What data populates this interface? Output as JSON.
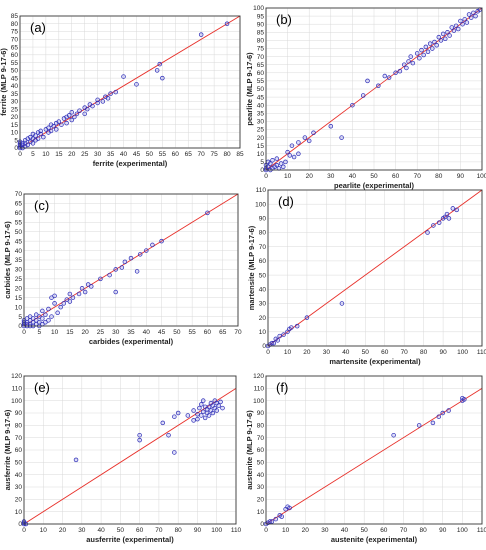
{
  "chart_data": [
    {
      "type": "scatter",
      "panel_label": "(a)",
      "xlabel": "ferrite (experimental)",
      "ylabel": "ferrite (MLP 9-17-6)",
      "xlim": [
        0,
        85
      ],
      "ylim": [
        0,
        85
      ],
      "xticks": [
        0,
        5,
        10,
        15,
        20,
        25,
        30,
        35,
        40,
        45,
        50,
        55,
        60,
        65,
        70,
        75,
        80,
        85
      ],
      "yticks": [
        0,
        5,
        10,
        15,
        20,
        25,
        30,
        35,
        40,
        45,
        50,
        55,
        60,
        65,
        70,
        75,
        80,
        85
      ],
      "diagonal": true,
      "grid": true,
      "points": [
        [
          0,
          0
        ],
        [
          0,
          1
        ],
        [
          0,
          2
        ],
        [
          0,
          3
        ],
        [
          0,
          4
        ],
        [
          1,
          0
        ],
        [
          1,
          2
        ],
        [
          1,
          3
        ],
        [
          2,
          1
        ],
        [
          2,
          3
        ],
        [
          2,
          5
        ],
        [
          3,
          2
        ],
        [
          3,
          6
        ],
        [
          4,
          4
        ],
        [
          4,
          7
        ],
        [
          5,
          3
        ],
        [
          5,
          6
        ],
        [
          5,
          9
        ],
        [
          6,
          5
        ],
        [
          6,
          8
        ],
        [
          7,
          6
        ],
        [
          7,
          10
        ],
        [
          8,
          9
        ],
        [
          8,
          11
        ],
        [
          9,
          7
        ],
        [
          10,
          12
        ],
        [
          11,
          10
        ],
        [
          11,
          13
        ],
        [
          12,
          11
        ],
        [
          12,
          15
        ],
        [
          13,
          14
        ],
        [
          14,
          12
        ],
        [
          14,
          16
        ],
        [
          15,
          17
        ],
        [
          16,
          15
        ],
        [
          17,
          19
        ],
        [
          18,
          16
        ],
        [
          18,
          20
        ],
        [
          19,
          21
        ],
        [
          20,
          18
        ],
        [
          20,
          23
        ],
        [
          21,
          20
        ],
        [
          22,
          22
        ],
        [
          23,
          24
        ],
        [
          25,
          22
        ],
        [
          25,
          26
        ],
        [
          26,
          25
        ],
        [
          27,
          28
        ],
        [
          28,
          27
        ],
        [
          30,
          29
        ],
        [
          30,
          31
        ],
        [
          32,
          30
        ],
        [
          33,
          33
        ],
        [
          34,
          32
        ],
        [
          35,
          35
        ],
        [
          37,
          36
        ],
        [
          40,
          46
        ],
        [
          45,
          41
        ],
        [
          53,
          50
        ],
        [
          54,
          54
        ],
        [
          55,
          45
        ],
        [
          70,
          73
        ],
        [
          80,
          80
        ]
      ]
    },
    {
      "type": "scatter",
      "panel_label": "(b)",
      "xlabel": "pearlite (experimental)",
      "ylabel": "pearlite (MLP 9-17-6)",
      "xlim": [
        0,
        100
      ],
      "ylim": [
        0,
        100
      ],
      "xticks": [
        0,
        10,
        20,
        30,
        40,
        50,
        60,
        70,
        80,
        90,
        100
      ],
      "yticks": [
        0,
        5,
        10,
        15,
        20,
        25,
        30,
        35,
        40,
        45,
        50,
        55,
        60,
        65,
        70,
        75,
        80,
        85,
        90,
        95,
        100
      ],
      "diagonal": true,
      "grid": true,
      "points": [
        [
          0,
          0
        ],
        [
          0,
          1
        ],
        [
          0,
          3
        ],
        [
          1,
          2
        ],
        [
          1,
          5
        ],
        [
          2,
          0
        ],
        [
          2,
          4
        ],
        [
          3,
          1
        ],
        [
          3,
          6
        ],
        [
          4,
          2
        ],
        [
          5,
          3
        ],
        [
          5,
          7
        ],
        [
          6,
          1
        ],
        [
          7,
          4
        ],
        [
          8,
          2
        ],
        [
          9,
          5
        ],
        [
          10,
          11
        ],
        [
          11,
          9
        ],
        [
          12,
          15
        ],
        [
          13,
          8
        ],
        [
          15,
          10
        ],
        [
          15,
          17
        ],
        [
          18,
          20
        ],
        [
          20,
          18
        ],
        [
          22,
          23
        ],
        [
          30,
          27
        ],
        [
          35,
          20
        ],
        [
          40,
          40
        ],
        [
          45,
          46
        ],
        [
          47,
          55
        ],
        [
          52,
          52
        ],
        [
          55,
          58
        ],
        [
          57,
          57
        ],
        [
          60,
          60
        ],
        [
          62,
          61
        ],
        [
          64,
          65
        ],
        [
          65,
          63
        ],
        [
          66,
          67
        ],
        [
          67,
          70
        ],
        [
          68,
          66
        ],
        [
          70,
          72
        ],
        [
          71,
          69
        ],
        [
          72,
          74
        ],
        [
          73,
          71
        ],
        [
          74,
          76
        ],
        [
          75,
          73
        ],
        [
          76,
          78
        ],
        [
          77,
          75
        ],
        [
          78,
          79
        ],
        [
          79,
          77
        ],
        [
          80,
          82
        ],
        [
          81,
          80
        ],
        [
          82,
          84
        ],
        [
          83,
          81
        ],
        [
          84,
          85
        ],
        [
          85,
          83
        ],
        [
          86,
          88
        ],
        [
          87,
          86
        ],
        [
          88,
          89
        ],
        [
          89,
          87
        ],
        [
          90,
          92
        ],
        [
          91,
          90
        ],
        [
          92,
          93
        ],
        [
          93,
          91
        ],
        [
          94,
          96
        ],
        [
          95,
          94
        ],
        [
          96,
          97
        ],
        [
          97,
          95
        ],
        [
          98,
          98
        ],
        [
          99,
          99
        ]
      ]
    },
    {
      "type": "scatter",
      "panel_label": "(c)",
      "xlabel": "carbides (experimental)",
      "ylabel": "carbides (MLP 9-17-6)",
      "xlim": [
        0,
        70
      ],
      "ylim": [
        0,
        70
      ],
      "xticks": [
        0,
        5,
        10,
        15,
        20,
        25,
        30,
        35,
        40,
        45,
        50,
        55,
        60,
        65,
        70
      ],
      "yticks": [
        0,
        5,
        10,
        15,
        20,
        25,
        30,
        35,
        40,
        45,
        50,
        55,
        60,
        65,
        70
      ],
      "diagonal": true,
      "grid": true,
      "points": [
        [
          0,
          0
        ],
        [
          0,
          1
        ],
        [
          0,
          2
        ],
        [
          0,
          3
        ],
        [
          1,
          0
        ],
        [
          1,
          1
        ],
        [
          1,
          2
        ],
        [
          1,
          4
        ],
        [
          2,
          0
        ],
        [
          2,
          1
        ],
        [
          2,
          3
        ],
        [
          2,
          5
        ],
        [
          3,
          0
        ],
        [
          3,
          2
        ],
        [
          3,
          4
        ],
        [
          4,
          1
        ],
        [
          4,
          3
        ],
        [
          4,
          6
        ],
        [
          5,
          0
        ],
        [
          5,
          2
        ],
        [
          5,
          5
        ],
        [
          6,
          1
        ],
        [
          6,
          4
        ],
        [
          6,
          8
        ],
        [
          7,
          2
        ],
        [
          7,
          6
        ],
        [
          8,
          3
        ],
        [
          8,
          9
        ],
        [
          9,
          5
        ],
        [
          9,
          15
        ],
        [
          10,
          16
        ],
        [
          10,
          12
        ],
        [
          11,
          7
        ],
        [
          12,
          10
        ],
        [
          13,
          12
        ],
        [
          14,
          14
        ],
        [
          15,
          13
        ],
        [
          15,
          17
        ],
        [
          16,
          15
        ],
        [
          18,
          17
        ],
        [
          19,
          20
        ],
        [
          20,
          18
        ],
        [
          21,
          22
        ],
        [
          22,
          21
        ],
        [
          25,
          25
        ],
        [
          28,
          27
        ],
        [
          30,
          18
        ],
        [
          30,
          30
        ],
        [
          32,
          31
        ],
        [
          33,
          34
        ],
        [
          35,
          36
        ],
        [
          37,
          29
        ],
        [
          38,
          38
        ],
        [
          40,
          40
        ],
        [
          42,
          43
        ],
        [
          45,
          45
        ],
        [
          60,
          60
        ]
      ]
    },
    {
      "type": "scatter",
      "panel_label": "(d)",
      "xlabel": "martensite (experimental)",
      "ylabel": "martensite (MLP 9-17-6)",
      "xlim": [
        0,
        110
      ],
      "ylim": [
        0,
        110
      ],
      "xticks": [
        0,
        10,
        20,
        30,
        40,
        50,
        60,
        70,
        80,
        90,
        100,
        110
      ],
      "yticks": [
        0,
        10,
        20,
        30,
        40,
        50,
        60,
        70,
        80,
        90,
        100,
        110
      ],
      "diagonal": true,
      "grid": true,
      "points": [
        [
          0,
          0
        ],
        [
          1,
          1
        ],
        [
          2,
          2
        ],
        [
          3,
          2
        ],
        [
          4,
          5
        ],
        [
          5,
          4
        ],
        [
          6,
          7
        ],
        [
          8,
          8
        ],
        [
          10,
          10
        ],
        [
          11,
          12
        ],
        [
          12,
          13
        ],
        [
          15,
          14
        ],
        [
          20,
          20
        ],
        [
          38,
          30
        ],
        [
          82,
          80
        ],
        [
          85,
          85
        ],
        [
          88,
          87
        ],
        [
          90,
          90
        ],
        [
          91,
          91
        ],
        [
          92,
          93
        ],
        [
          93,
          90
        ],
        [
          95,
          97
        ],
        [
          97,
          96
        ]
      ]
    },
    {
      "type": "scatter",
      "panel_label": "(e)",
      "xlabel": "ausferrite (experimental)",
      "ylabel": "ausferrite (MLP 9-17-6)",
      "xlim": [
        0,
        110
      ],
      "ylim": [
        0,
        120
      ],
      "xticks": [
        0,
        10,
        20,
        30,
        40,
        50,
        60,
        70,
        80,
        90,
        100,
        110
      ],
      "yticks": [
        0,
        10,
        20,
        30,
        40,
        50,
        60,
        70,
        80,
        90,
        100,
        110,
        120
      ],
      "diagonal": true,
      "grid": true,
      "points": [
        [
          0,
          0
        ],
        [
          0,
          1
        ],
        [
          0,
          2
        ],
        [
          1,
          0
        ],
        [
          27,
          52
        ],
        [
          60,
          68
        ],
        [
          60,
          72
        ],
        [
          72,
          82
        ],
        [
          75,
          72
        ],
        [
          78,
          58
        ],
        [
          78,
          87
        ],
        [
          80,
          90
        ],
        [
          85,
          88
        ],
        [
          88,
          84
        ],
        [
          88,
          92
        ],
        [
          90,
          85
        ],
        [
          90,
          89
        ],
        [
          91,
          94
        ],
        [
          92,
          88
        ],
        [
          92,
          97
        ],
        [
          93,
          91
        ],
        [
          93,
          100
        ],
        [
          94,
          86
        ],
        [
          94,
          95
        ],
        [
          95,
          90
        ],
        [
          95,
          93
        ],
        [
          96,
          88
        ],
        [
          96,
          95
        ],
        [
          97,
          92
        ],
        [
          97,
          98
        ],
        [
          98,
          90
        ],
        [
          98,
          96
        ],
        [
          99,
          94
        ],
        [
          99,
          100
        ],
        [
          100,
          92
        ],
        [
          100,
          98
        ],
        [
          101,
          96
        ],
        [
          102,
          99
        ],
        [
          103,
          94
        ]
      ]
    },
    {
      "type": "scatter",
      "panel_label": "(f)",
      "xlabel": "austenite (experimental)",
      "ylabel": "austenite (MLP 9-17-6)",
      "xlim": [
        0,
        110
      ],
      "ylim": [
        0,
        120
      ],
      "xticks": [
        0,
        10,
        20,
        30,
        40,
        50,
        60,
        70,
        80,
        90,
        100,
        110
      ],
      "yticks": [
        0,
        10,
        20,
        30,
        40,
        50,
        60,
        70,
        80,
        90,
        100,
        110,
        120
      ],
      "diagonal": true,
      "grid": true,
      "points": [
        [
          0,
          0
        ],
        [
          1,
          1
        ],
        [
          2,
          2
        ],
        [
          3,
          2
        ],
        [
          5,
          4
        ],
        [
          7,
          7
        ],
        [
          8,
          6
        ],
        [
          10,
          12
        ],
        [
          11,
          14
        ],
        [
          12,
          13
        ],
        [
          65,
          72
        ],
        [
          78,
          80
        ],
        [
          85,
          82
        ],
        [
          88,
          87
        ],
        [
          90,
          90
        ],
        [
          93,
          92
        ],
        [
          100,
          100
        ],
        [
          100,
          102
        ],
        [
          101,
          101
        ]
      ]
    }
  ]
}
